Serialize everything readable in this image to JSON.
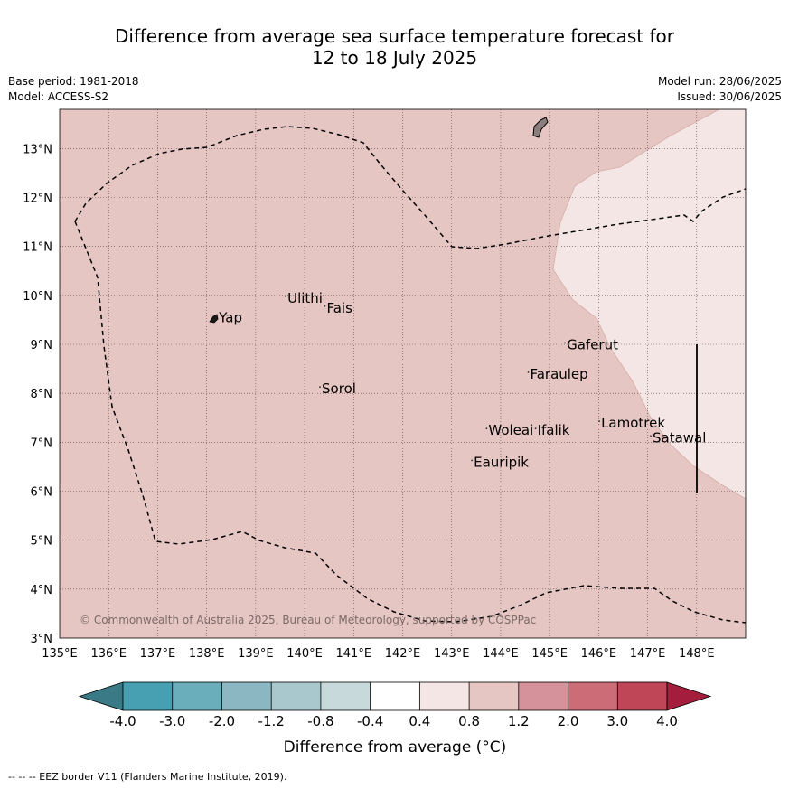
{
  "title": {
    "line1": "Difference from average sea surface temperature forecast for",
    "line2": "12 to 18 July 2025"
  },
  "meta_left": {
    "base_period": "Base period: 1981-2018",
    "model": "Model: ACCESS-S2"
  },
  "meta_right": {
    "model_run": "Model run: 28/06/2025",
    "issued": "Issued: 30/06/2025"
  },
  "map": {
    "lon_range": [
      135,
      149
    ],
    "lat_range": [
      3,
      13.8
    ],
    "lon_ticks": [
      "135°E",
      "136°E",
      "137°E",
      "138°E",
      "139°E",
      "140°E",
      "141°E",
      "142°E",
      "143°E",
      "144°E",
      "145°E",
      "146°E",
      "147°E",
      "148°E"
    ],
    "lat_ticks": [
      "3°N",
      "4°N",
      "5°N",
      "6°N",
      "7°N",
      "8°N",
      "9°N",
      "10°N",
      "11°N",
      "12°N",
      "13°N"
    ],
    "background_color": "#e6c6c2",
    "anomaly_region_color": "#f4e6e4",
    "places": [
      {
        "name": "Yap",
        "lon": 138.25,
        "lat": 9.45
      },
      {
        "name": "Ulithi",
        "lon": 139.65,
        "lat": 9.85
      },
      {
        "name": "Fais",
        "lon": 140.45,
        "lat": 9.65
      },
      {
        "name": "Sorol",
        "lon": 140.35,
        "lat": 8.0
      },
      {
        "name": "Gaferut",
        "lon": 145.35,
        "lat": 8.9
      },
      {
        "name": "Faraulep",
        "lon": 144.6,
        "lat": 8.3
      },
      {
        "name": "Woleai",
        "lon": 143.75,
        "lat": 7.15
      },
      {
        "name": "Ifalik",
        "lon": 144.75,
        "lat": 7.15
      },
      {
        "name": "Lamotrek",
        "lon": 146.05,
        "lat": 7.3
      },
      {
        "name": "Satawal",
        "lon": 147.1,
        "lat": 7.0
      },
      {
        "name": "Eauripik",
        "lon": 143.45,
        "lat": 6.5
      }
    ],
    "copyright": "© Commonwealth of Australia 2025, Bureau of Meteorology, supported by COSPPac"
  },
  "colorbar": {
    "labels": [
      "-4.0",
      "-3.0",
      "-2.0",
      "-1.2",
      "-0.8",
      "-0.4",
      "0.4",
      "0.8",
      "1.2",
      "2.0",
      "3.0",
      "4.0"
    ],
    "low_extend_color": "#3a7a86",
    "colors": [
      "#47a0b2",
      "#6aadbb",
      "#8ab7c2",
      "#a9c8ce",
      "#c8d9dc",
      "#ffffff",
      "#f4e6e4",
      "#e6c6c2",
      "#d6929a",
      "#cb6c77",
      "#bf4657"
    ],
    "high_extend_color": "#a51d3c",
    "label": "Difference from average (°C)"
  },
  "footer": "--  --  -- EEZ border V11 (Flanders Marine Institute, 2019)."
}
